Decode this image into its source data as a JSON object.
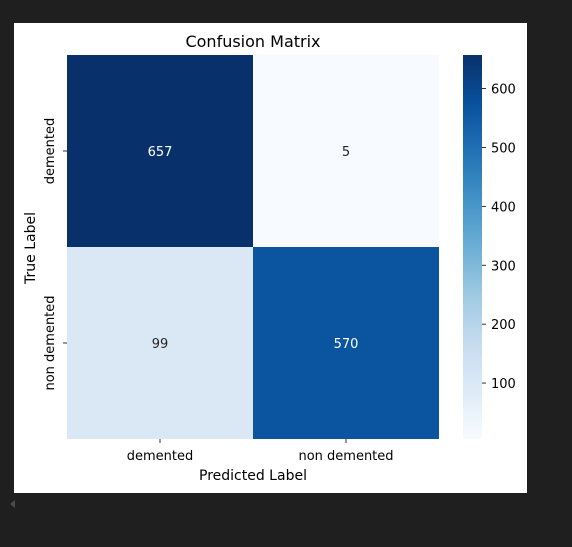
{
  "chart_data": {
    "type": "heatmap",
    "title": "Confusion Matrix",
    "xlabel": "Predicted Label",
    "ylabel": "True Label",
    "x_categories": [
      "demented",
      "non demented"
    ],
    "y_categories": [
      "demented",
      "non demented"
    ],
    "values": [
      [
        657,
        5
      ],
      [
        99,
        570
      ]
    ],
    "colormap": "Blues",
    "color_range": [
      5,
      657
    ],
    "colorbar_ticks": [
      100,
      200,
      300,
      400,
      500,
      600
    ],
    "cell_colors": [
      [
        "#08306b",
        "#f7fbff"
      ],
      [
        "#dae8f6",
        "#0b55a0"
      ]
    ],
    "annotation_colors": [
      [
        "#ffffff",
        "#262626"
      ],
      [
        "#262626",
        "#ffffff"
      ]
    ],
    "colorbar_stops": [
      "#f7fbff",
      "#deebf7",
      "#c6dbef",
      "#9ecae1",
      "#6baed6",
      "#4292c6",
      "#2171b5",
      "#08519c",
      "#08306b"
    ]
  }
}
